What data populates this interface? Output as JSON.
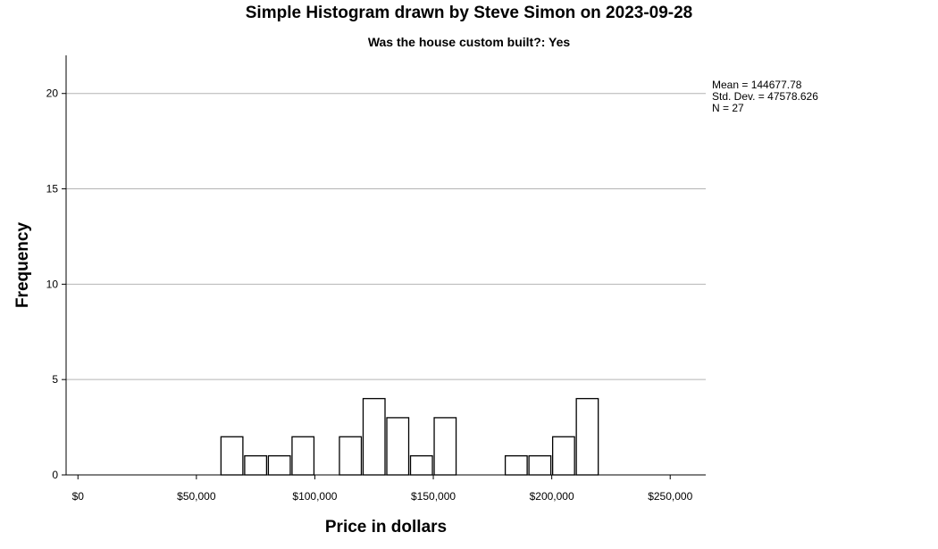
{
  "chart_data": {
    "type": "bar",
    "title": "Simple Histogram drawn by Steve Simon on 2023-09-28",
    "subtitle": "Was the house custom built?: Yes",
    "xlabel": "Price in dollars",
    "ylabel": "Frequency",
    "stats": [
      "Mean = 144677.78",
      "Std. Dev. = 47578.626",
      "N = 27"
    ],
    "xlim": [
      -5000,
      265000
    ],
    "ylim": [
      0,
      22
    ],
    "x_ticks": [
      0,
      50000,
      100000,
      150000,
      200000,
      250000
    ],
    "x_tick_labels": [
      "$0",
      "$50,000",
      "$100,000",
      "$150,000",
      "$200,000",
      "$250,000"
    ],
    "y_ticks": [
      0,
      5,
      10,
      15,
      20
    ],
    "y_tick_labels": [
      "0",
      "5",
      "10",
      "15",
      "20"
    ],
    "grid": true,
    "bin_width": 10000,
    "bins": [
      {
        "start": 60000,
        "count": 2
      },
      {
        "start": 70000,
        "count": 1
      },
      {
        "start": 80000,
        "count": 1
      },
      {
        "start": 90000,
        "count": 2
      },
      {
        "start": 110000,
        "count": 2
      },
      {
        "start": 120000,
        "count": 4
      },
      {
        "start": 130000,
        "count": 3
      },
      {
        "start": 140000,
        "count": 1
      },
      {
        "start": 150000,
        "count": 3
      },
      {
        "start": 180000,
        "count": 1
      },
      {
        "start": 190000,
        "count": 1
      },
      {
        "start": 200000,
        "count": 2
      },
      {
        "start": 210000,
        "count": 4
      }
    ]
  }
}
